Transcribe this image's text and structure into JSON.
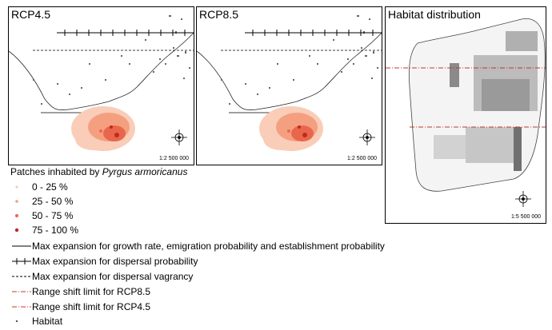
{
  "panels": {
    "rcp45": {
      "title": "RCP4.5",
      "scale": "1:2 500 000"
    },
    "rcp85": {
      "title": "RCP8.5",
      "scale": "1:2 500 000"
    },
    "habitat": {
      "title": "Habitat distribution",
      "scale": "1:5 500 000"
    }
  },
  "legend": {
    "title_prefix": "Patches inhabited by ",
    "title_species": "Pyrgus armoricanus",
    "occupancy_classes": [
      {
        "label": "0 - 25 %",
        "color": "#f9cdb8"
      },
      {
        "label": "25 - 50 %",
        "color": "#f4a080"
      },
      {
        "label": "50 - 75 %",
        "color": "#e8674c"
      },
      {
        "label": "75 - 100 %",
        "color": "#c0291c"
      }
    ],
    "lines": [
      {
        "label": "Max expansion for growth rate, emigration probability and establishment probability",
        "style": "solid"
      },
      {
        "label": "Max expansion for dispersal probability",
        "style": "crosshatch"
      },
      {
        "label": "Max expansion for dispersal vagrancy",
        "style": "dashed"
      },
      {
        "label": "Range shift limit for RCP8.5",
        "style": "dashdot-red"
      },
      {
        "label": "Range shift limit for RCP4.5",
        "style": "dashdot-red"
      }
    ],
    "habitat_label": "Habitat"
  },
  "colors": {
    "range_shift": "#c0392b",
    "habitat": "#555555",
    "coast": "#222222"
  }
}
